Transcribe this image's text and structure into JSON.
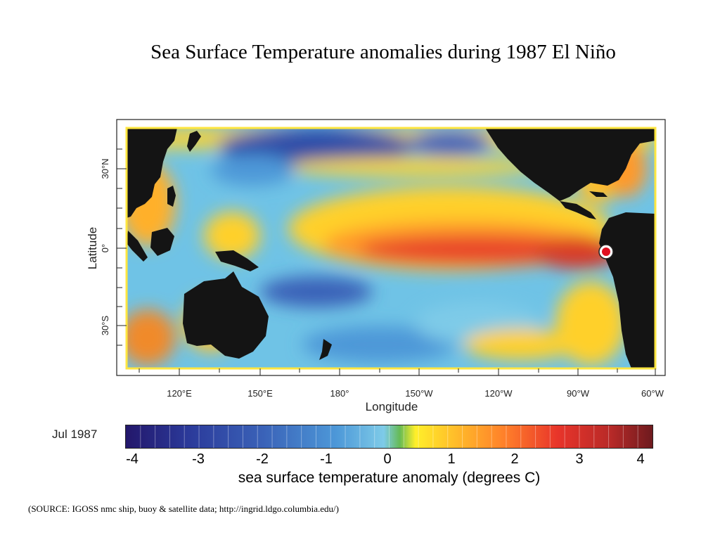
{
  "title": "Sea Surface Temperature anomalies during 1987 El Niño",
  "map": {
    "y_axis_label": "Latitude",
    "lat_ticks": [
      "30°N",
      "0°",
      "30°S"
    ],
    "x_axis_label": "Longitude",
    "lon_ticks": [
      "120°E",
      "150°E",
      "180°",
      "150°W",
      "120°W",
      "90°W",
      "60°W"
    ],
    "marker": "red-dot-location-marker",
    "colors": {
      "land": "#141414",
      "marker": "#e01020"
    }
  },
  "colorbar": {
    "date_label": "Jul 1987",
    "ticks": [
      "-4",
      "-3",
      "-2",
      "-1",
      "0",
      "1",
      "2",
      "3",
      "4"
    ],
    "label": "sea surface temperature anomaly (degrees C)",
    "colors": [
      "#23176b",
      "#2b3a9a",
      "#3a62b8",
      "#4d98d8",
      "#7ecbe8",
      "#66bb55",
      "#ffef2a",
      "#ffc02a",
      "#ff7f2a",
      "#e8342a",
      "#b82a28",
      "#6e1a1e"
    ]
  },
  "source": "(SOURCE: IGOSS nmc ship, buoy & satellite data; http://ingrid.ldgo.columbia.edu/)"
}
